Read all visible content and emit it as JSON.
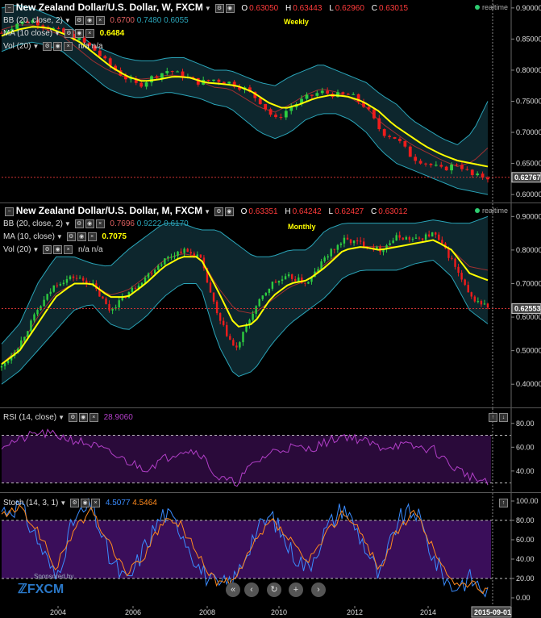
{
  "colors": {
    "bg": "#000000",
    "bull": "#2ecc40",
    "bear": "#ee1c1c",
    "ma": "#ffff00",
    "bb_line": "#2aa4b8",
    "bb_fill": "#0e2a32",
    "rsi_line": "#b23fc8",
    "rsi_band": "#2a0a3a",
    "stoch_k": "#3a8cff",
    "stoch_d": "#ff8a1e",
    "stoch_band": "#3a0e5a",
    "price_line": "#cc3333"
  },
  "weekly": {
    "title": "New Zealand Dollar/U.S. Dollar, W, FXCM",
    "ohlc": {
      "o_label": "O",
      "o": "0.63050",
      "h_label": "H",
      "h": "0.63443",
      "l_label": "L",
      "l": "0.62960",
      "c_label": "C",
      "c": "0.63015"
    },
    "bb_label": "BB (20, close, 2)",
    "bb_values": [
      "0.6700",
      "0.7480",
      "0.6055"
    ],
    "ma_label": "MA (10 close)",
    "ma_value": "0.6484",
    "vol_label": "Vol (20)",
    "vol_values": [
      "n/a",
      "n/a"
    ],
    "tag": "Weekly",
    "realtime": "realtime",
    "last_price": "0.62767"
  },
  "monthly": {
    "title": "New Zealand Dollar/U.S. Dollar, M, FXCM",
    "ohlc": {
      "o_label": "O",
      "o": "0.63351",
      "h_label": "H",
      "h": "0.64242",
      "l_label": "L",
      "l": "0.62427",
      "c_label": "C",
      "c": "0.63012"
    },
    "bb_label": "BB (20, close, 2)",
    "bb_values": [
      "0.7696",
      "0.9222",
      "0.6170"
    ],
    "ma_label": "MA (10, close)",
    "ma_value": "0.7075",
    "vol_label": "Vol (20)",
    "vol_values": [
      "n/a",
      "n/a"
    ],
    "tag": "Monthly",
    "realtime": "realtime",
    "last_price": "0.62553"
  },
  "rsi": {
    "label": "RSI (14, close)",
    "value": "28.9060"
  },
  "stoch": {
    "label": "Stoch (14, 3, 1)",
    "k": "4.5077",
    "d": "4.5464"
  },
  "x_axis": {
    "labels": [
      "2004",
      "2006",
      "2008",
      "2010",
      "2012",
      "2014"
    ],
    "current_date": "2015-09-01"
  },
  "sponsor": {
    "text": "Sponsored by",
    "brand": "FXCM"
  },
  "nav_buttons": [
    "«",
    "‹",
    "↻",
    "+",
    "›"
  ],
  "chart_data": [
    {
      "type": "candlestick",
      "title": "New Zealand Dollar/U.S. Dollar, W, FXCM",
      "yaxis_ticks": [
        0.9,
        0.85,
        0.8,
        0.75,
        0.7,
        0.65,
        0.6
      ],
      "ylim": [
        0.595,
        0.905
      ],
      "points": 95,
      "close_path": [
        0.86,
        0.875,
        0.88,
        0.87,
        0.86,
        0.85,
        0.835,
        0.81,
        0.79,
        0.775,
        0.79,
        0.8,
        0.79,
        0.78,
        0.785,
        0.78,
        0.77,
        0.75,
        0.72,
        0.74,
        0.755,
        0.765,
        0.76,
        0.76,
        0.74,
        0.7,
        0.69,
        0.66,
        0.65,
        0.64,
        0.65,
        0.63,
        0.628
      ],
      "ma_path": [
        0.855,
        0.865,
        0.87,
        0.868,
        0.858,
        0.845,
        0.825,
        0.805,
        0.79,
        0.782,
        0.785,
        0.79,
        0.788,
        0.78,
        0.778,
        0.775,
        0.765,
        0.748,
        0.738,
        0.745,
        0.755,
        0.76,
        0.758,
        0.75,
        0.735,
        0.712,
        0.695,
        0.678,
        0.665,
        0.655,
        0.65,
        0.645
      ],
      "bb_upper": [
        0.9,
        0.905,
        0.9,
        0.89,
        0.88,
        0.86,
        0.84,
        0.83,
        0.82,
        0.815,
        0.815,
        0.82,
        0.82,
        0.81,
        0.8,
        0.8,
        0.79,
        0.78,
        0.775,
        0.79,
        0.8,
        0.81,
        0.8,
        0.79,
        0.78,
        0.76,
        0.745,
        0.72,
        0.705,
        0.69,
        0.68,
        0.7,
        0.75
      ],
      "bb_lower": [
        0.83,
        0.84,
        0.845,
        0.84,
        0.83,
        0.81,
        0.79,
        0.77,
        0.76,
        0.755,
        0.76,
        0.765,
        0.76,
        0.755,
        0.745,
        0.74,
        0.72,
        0.7,
        0.69,
        0.7,
        0.72,
        0.73,
        0.73,
        0.72,
        0.7,
        0.67,
        0.65,
        0.64,
        0.63,
        0.62,
        0.61,
        0.605,
        0.6
      ],
      "last_price": 0.62767
    },
    {
      "type": "candlestick",
      "title": "New Zealand Dollar/U.S. Dollar, M, FXCM",
      "yaxis_ticks": [
        0.9,
        0.8,
        0.7,
        0.6,
        0.5,
        0.4
      ],
      "ylim": [
        0.35,
        0.92
      ],
      "x": [
        "2003",
        "2004",
        "2005",
        "2006",
        "2007",
        "2008",
        "2009",
        "2010",
        "2011",
        "2012",
        "2013",
        "2014",
        "2015"
      ],
      "close_path": [
        0.45,
        0.52,
        0.62,
        0.7,
        0.72,
        0.7,
        0.62,
        0.67,
        0.72,
        0.77,
        0.8,
        0.78,
        0.6,
        0.5,
        0.62,
        0.7,
        0.72,
        0.7,
        0.78,
        0.83,
        0.82,
        0.8,
        0.84,
        0.83,
        0.85,
        0.77,
        0.66,
        0.63
      ],
      "ma_path": [
        0.46,
        0.5,
        0.58,
        0.66,
        0.7,
        0.7,
        0.66,
        0.66,
        0.7,
        0.75,
        0.78,
        0.78,
        0.68,
        0.57,
        0.58,
        0.66,
        0.7,
        0.71,
        0.75,
        0.8,
        0.81,
        0.8,
        0.81,
        0.82,
        0.83,
        0.8,
        0.73,
        0.71
      ],
      "bb_upper": [
        0.52,
        0.58,
        0.7,
        0.78,
        0.78,
        0.76,
        0.75,
        0.8,
        0.84,
        0.88,
        0.88,
        0.86,
        0.86,
        0.82,
        0.78,
        0.78,
        0.8,
        0.8,
        0.86,
        0.88,
        0.88,
        0.88,
        0.88,
        0.88,
        0.89,
        0.88,
        0.88,
        0.9
      ],
      "bb_lower": [
        0.4,
        0.44,
        0.5,
        0.56,
        0.62,
        0.64,
        0.58,
        0.56,
        0.6,
        0.66,
        0.7,
        0.7,
        0.52,
        0.42,
        0.44,
        0.52,
        0.58,
        0.62,
        0.66,
        0.72,
        0.74,
        0.74,
        0.74,
        0.76,
        0.77,
        0.72,
        0.62,
        0.58
      ],
      "last_price": 0.62553
    },
    {
      "type": "line",
      "title": "RSI (14, close)",
      "yaxis_ticks": [
        80,
        60,
        40
      ],
      "ylim": [
        25,
        90
      ],
      "band": [
        30,
        70
      ],
      "values": [
        62,
        66,
        72,
        70,
        66,
        62,
        55,
        48,
        42,
        50,
        58,
        56,
        34,
        30,
        46,
        56,
        60,
        58,
        64,
        70,
        66,
        60,
        62,
        60,
        58,
        44,
        36,
        29
      ]
    },
    {
      "type": "line",
      "title": "Stoch (14, 3, 1)",
      "yaxis_ticks": [
        100,
        80,
        60,
        40,
        20,
        0
      ],
      "ylim": [
        -5,
        105
      ],
      "band": [
        20,
        80
      ],
      "series": [
        {
          "name": "%K",
          "values": [
            90,
            95,
            60,
            20,
            80,
            95,
            40,
            15,
            55,
            88,
            70,
            30,
            10,
            20,
            65,
            85,
            50,
            30,
            70,
            95,
            60,
            20,
            80,
            90,
            40,
            10,
            20,
            5
          ]
        },
        {
          "name": "%D",
          "values": [
            85,
            92,
            70,
            30,
            70,
            90,
            55,
            25,
            45,
            80,
            75,
            40,
            15,
            18,
            55,
            80,
            60,
            35,
            65,
            90,
            65,
            30,
            70,
            88,
            50,
            15,
            15,
            5
          ]
        }
      ]
    }
  ]
}
